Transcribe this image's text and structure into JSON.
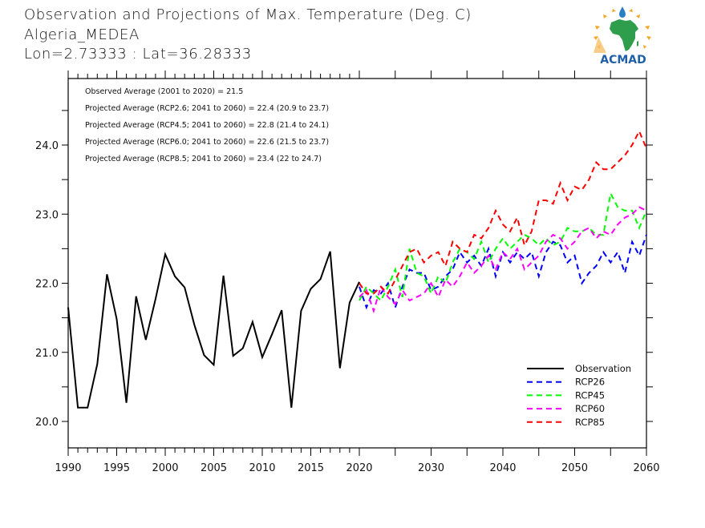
{
  "header": {
    "title": "Observation and Projections of Max. Temperature (Deg. C)",
    "location": "Algeria_MEDEA",
    "coords": "Lon=2.73333 : Lat=36.28333"
  },
  "logo": {
    "text": "ACMAD",
    "icon": "acmad-africa-logo-icon"
  },
  "chart_data": {
    "type": "line",
    "title": "Observation and Projections of Max. Temperature (Deg. C)",
    "xlabel": "",
    "ylabel": "",
    "ylim": [
      19.6,
      25.0
    ],
    "yticks": [
      20.0,
      21.0,
      22.0,
      23.0,
      24.0
    ],
    "ytick_labels": [
      "20.0",
      "21.0",
      "22.0",
      "23.0",
      "24.0"
    ],
    "xticks": [
      1990,
      1995,
      2000,
      2005,
      2010,
      2015,
      2020,
      2030,
      2040,
      2050,
      2060
    ],
    "xtick_labels": [
      "1990",
      "1995",
      "2000",
      "2005",
      "2010",
      "2015",
      "2020",
      "2030",
      "2040",
      "2050",
      "2060"
    ],
    "xlim": [
      1990,
      2060
    ],
    "grid": false,
    "legend_position": "bottom-right",
    "annotations": [
      "Observed Average (2001 to 2020) = 21.5",
      "Projected Average (RCP2.6; 2041 to 2060) = 22.4 (20.9 to 23.7)",
      "Projected Average (RCP4.5; 2041 to 2060) = 22.8 (21.4 to 24.1)",
      "Projected Average (RCP6.0; 2041 to 2060) = 22.6 (21.5 to 23.7)",
      "Projected Average (RCP8.5; 2041 to 2060) = 23.4 (22 to 24.7)"
    ],
    "series": [
      {
        "name": "Observation",
        "color": "#000000",
        "style": "solid",
        "x": [
          1990,
          1991,
          1992,
          1993,
          1994,
          1995,
          1996,
          1997,
          1998,
          1999,
          2000,
          2001,
          2002,
          2003,
          2004,
          2005,
          2006,
          2007,
          2008,
          2009,
          2010,
          2011,
          2012,
          2013,
          2014,
          2015,
          2016,
          2017,
          2018,
          2019,
          2020
        ],
        "values": [
          21.65,
          20.2,
          20.2,
          20.83,
          22.13,
          21.48,
          20.27,
          21.81,
          21.18,
          21.77,
          22.42,
          22.1,
          21.94,
          21.4,
          20.96,
          20.82,
          22.11,
          20.95,
          21.06,
          21.44,
          20.93,
          21.26,
          21.61,
          20.2,
          21.6,
          21.92,
          22.06,
          22.46,
          20.77,
          21.72,
          22.02
        ]
      },
      {
        "name": "RCP26",
        "color": "#0000ff",
        "style": "dashed",
        "x": [
          2020,
          2021,
          2022,
          2023,
          2024,
          2025,
          2026,
          2027,
          2028,
          2029,
          2030,
          2031,
          2032,
          2033,
          2034,
          2035,
          2036,
          2037,
          2038,
          2039,
          2040,
          2041,
          2042,
          2043,
          2044,
          2045,
          2046,
          2047,
          2048,
          2049,
          2050,
          2051,
          2052,
          2053,
          2054,
          2055,
          2056,
          2057,
          2058,
          2059,
          2060
        ],
        "values": [
          21.95,
          21.65,
          21.9,
          21.85,
          22.0,
          21.65,
          21.95,
          22.2,
          22.15,
          22.15,
          21.9,
          21.95,
          22.1,
          22.2,
          22.45,
          22.3,
          22.4,
          22.25,
          22.5,
          22.1,
          22.45,
          22.3,
          22.45,
          22.35,
          22.45,
          22.1,
          22.45,
          22.6,
          22.55,
          22.3,
          22.4,
          22.0,
          22.15,
          22.25,
          22.45,
          22.3,
          22.45,
          22.15,
          22.6,
          22.4,
          22.7
        ]
      },
      {
        "name": "RCP45",
        "color": "#00ff00",
        "style": "dashed",
        "x": [
          2020,
          2021,
          2022,
          2023,
          2024,
          2025,
          2026,
          2027,
          2028,
          2029,
          2030,
          2031,
          2032,
          2033,
          2034,
          2035,
          2036,
          2037,
          2038,
          2039,
          2040,
          2041,
          2042,
          2043,
          2044,
          2045,
          2046,
          2047,
          2048,
          2049,
          2050,
          2051,
          2052,
          2053,
          2054,
          2055,
          2056,
          2057,
          2058,
          2059,
          2060
        ],
        "values": [
          21.75,
          21.95,
          21.85,
          21.75,
          21.95,
          22.2,
          21.8,
          22.5,
          22.15,
          22.1,
          21.85,
          22.1,
          22.0,
          22.3,
          22.5,
          22.45,
          22.35,
          22.6,
          22.3,
          22.5,
          22.65,
          22.5,
          22.6,
          22.7,
          22.65,
          22.55,
          22.65,
          22.55,
          22.6,
          22.8,
          22.75,
          22.75,
          22.8,
          22.7,
          22.7,
          23.3,
          23.1,
          23.05,
          23.05,
          22.8,
          23.05
        ]
      },
      {
        "name": "RCP60",
        "color": "#ff00ff",
        "style": "dashed",
        "x": [
          2020,
          2021,
          2022,
          2023,
          2024,
          2025,
          2026,
          2027,
          2028,
          2029,
          2030,
          2031,
          2032,
          2033,
          2034,
          2035,
          2036,
          2037,
          2038,
          2039,
          2040,
          2041,
          2042,
          2043,
          2044,
          2045,
          2046,
          2047,
          2048,
          2049,
          2050,
          2051,
          2052,
          2053,
          2054,
          2055,
          2056,
          2057,
          2058,
          2059,
          2060
        ],
        "values": [
          21.8,
          21.9,
          21.6,
          21.95,
          21.8,
          21.7,
          21.9,
          21.75,
          21.8,
          21.85,
          22.0,
          21.8,
          22.05,
          21.95,
          22.1,
          22.3,
          22.15,
          22.25,
          22.4,
          22.2,
          22.45,
          22.35,
          22.5,
          22.2,
          22.3,
          22.4,
          22.6,
          22.7,
          22.65,
          22.5,
          22.6,
          22.75,
          22.8,
          22.65,
          22.75,
          22.7,
          22.85,
          22.95,
          23.0,
          23.1,
          23.05
        ]
      },
      {
        "name": "RCP85",
        "color": "#ff0000",
        "style": "dashed",
        "x": [
          2020,
          2021,
          2022,
          2023,
          2024,
          2025,
          2026,
          2027,
          2028,
          2029,
          2030,
          2031,
          2032,
          2033,
          2034,
          2035,
          2036,
          2037,
          2038,
          2039,
          2040,
          2041,
          2042,
          2043,
          2044,
          2045,
          2046,
          2047,
          2048,
          2049,
          2050,
          2051,
          2052,
          2053,
          2054,
          2055,
          2056,
          2057,
          2058,
          2059,
          2060
        ],
        "values": [
          22.0,
          21.85,
          21.85,
          21.95,
          21.85,
          22.05,
          22.25,
          22.45,
          22.5,
          22.3,
          22.4,
          22.45,
          22.25,
          22.6,
          22.5,
          22.45,
          22.7,
          22.65,
          22.8,
          23.05,
          22.85,
          22.75,
          22.95,
          22.55,
          22.75,
          23.2,
          23.2,
          23.15,
          23.45,
          23.2,
          23.4,
          23.35,
          23.5,
          23.75,
          23.65,
          23.65,
          23.75,
          23.85,
          24.0,
          24.2,
          23.95
        ]
      }
    ]
  }
}
